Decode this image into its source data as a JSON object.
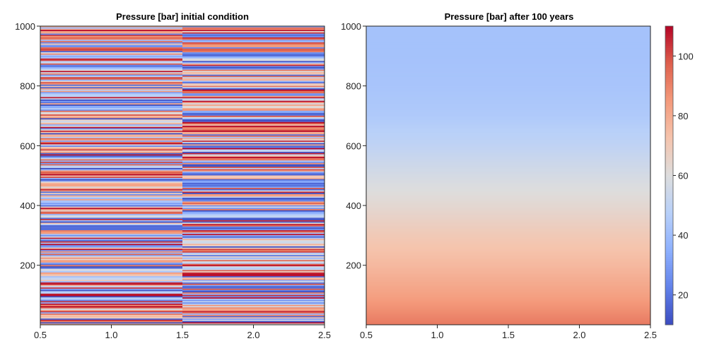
{
  "chart_data": [
    {
      "type": "heatmap",
      "title": "Pressure [bar] initial condition",
      "xlim": [
        0.5,
        2.5
      ],
      "ylim": [
        1,
        1000
      ],
      "x_ticks": [
        "0.5",
        "1.0",
        "1.5",
        "2.0",
        "2.5"
      ],
      "y_ticks": [
        "200",
        "400",
        "600",
        "800",
        "1000"
      ],
      "columns": [
        {
          "x_range": [
            0.5,
            1.5
          ],
          "description_values": "stratified random layers"
        },
        {
          "x_range": [
            1.5,
            2.5
          ],
          "description_values": "stratified random layers"
        }
      ],
      "value_range": [
        10,
        110
      ],
      "colormap": "coolwarm",
      "grid": false
    },
    {
      "type": "heatmap",
      "title": "Pressure [bar] after 100 years",
      "xlim": [
        0.5,
        2.5
      ],
      "ylim": [
        1,
        1000
      ],
      "x_ticks": [
        "0.5",
        "1.0",
        "1.5",
        "2.0",
        "2.5"
      ],
      "y_ticks": [
        "200",
        "400",
        "600",
        "800",
        "1000"
      ],
      "profile": {
        "y": [
          0,
          100,
          200,
          300,
          400,
          500,
          600,
          700,
          800,
          900,
          1000
        ],
        "pressure": [
          92,
          83,
          76,
          70,
          63,
          57,
          50,
          45,
          43,
          42,
          42
        ]
      },
      "value_range": [
        10,
        110
      ],
      "colormap": "coolwarm",
      "grid": false
    }
  ],
  "colorbar": {
    "ticks": [
      "20",
      "40",
      "60",
      "80",
      "100"
    ],
    "range": [
      10,
      110
    ]
  }
}
